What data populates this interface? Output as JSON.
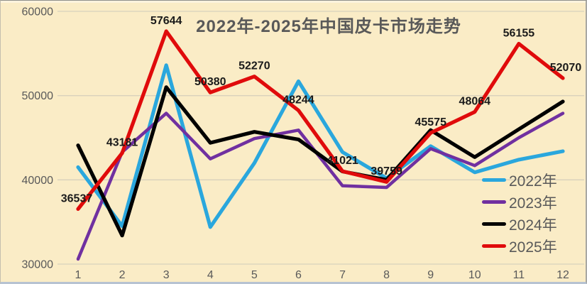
{
  "chart_data": {
    "type": "line",
    "title": "2022年-2025年中国皮卡市场走势",
    "xlabel": "",
    "ylabel": "",
    "categories": [
      "1",
      "2",
      "3",
      "4",
      "5",
      "6",
      "7",
      "8",
      "9",
      "10",
      "11",
      "12"
    ],
    "series": [
      {
        "name": "2022年",
        "color": "#2AA7DD",
        "labeled": false,
        "values": [
          41500,
          34500,
          53600,
          34400,
          42000,
          51700,
          43300,
          40200,
          44000,
          40900,
          42400,
          43400
        ]
      },
      {
        "name": "2023年",
        "color": "#7030A0",
        "labeled": false,
        "values": [
          30600,
          43300,
          47900,
          42500,
          44900,
          45900,
          39300,
          39100,
          43700,
          41700,
          45000,
          47900
        ]
      },
      {
        "name": "2024年",
        "color": "#000000",
        "labeled": false,
        "values": [
          44100,
          33400,
          51000,
          44400,
          45700,
          44800,
          41000,
          40000,
          45900,
          42700,
          46000,
          49300
        ]
      },
      {
        "name": "2025年",
        "color": "#E00B0B",
        "labeled": true,
        "values": [
          36537,
          43181,
          57644,
          50380,
          52270,
          48244,
          41021,
          39759,
          45575,
          48064,
          56155,
          52070
        ]
      }
    ],
    "ylim": [
      30000,
      60000
    ],
    "yticks": [
      30000,
      40000,
      50000,
      60000
    ],
    "grid": "horizontal",
    "legend_position": "right-middle",
    "colors": {
      "background": "#FAECC6",
      "gridline": "#D8D1BC",
      "axis_text": "#595959",
      "data_label": "#1A1A1A"
    }
  }
}
